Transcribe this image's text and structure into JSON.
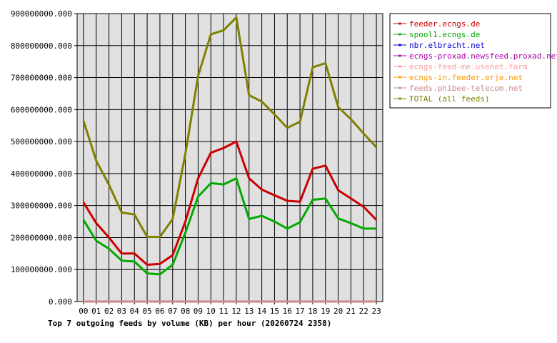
{
  "chart_data": {
    "type": "line",
    "title": "Top 7 outgoing feeds by volume (KB) per hour (20260724 2358)",
    "xlabel": "",
    "ylabel": "",
    "categories": [
      "00",
      "01",
      "02",
      "03",
      "04",
      "05",
      "06",
      "07",
      "08",
      "09",
      "10",
      "11",
      "12",
      "13",
      "14",
      "15",
      "16",
      "17",
      "18",
      "19",
      "20",
      "21",
      "22",
      "23"
    ],
    "ylim": [
      0,
      900000000
    ],
    "yticks": [
      "0.000",
      "100000000.000",
      "200000000.000",
      "300000000.000",
      "400000000.000",
      "500000000.000",
      "600000000.000",
      "700000000.000",
      "800000000.000",
      "900000000.000"
    ],
    "grid": true,
    "legend_position": "right",
    "series": [
      {
        "name": "feeder.ecngs.de",
        "color": "#cc0000",
        "values": [
          310000000,
          245000000,
          200000000,
          150000000,
          150000000,
          115000000,
          118000000,
          145000000,
          250000000,
          385000000,
          465000000,
          480000000,
          500000000,
          385000000,
          350000000,
          332000000,
          315000000,
          312000000,
          415000000,
          425000000,
          348000000,
          322000000,
          296000000,
          255000000
        ]
      },
      {
        "name": "spool1.ecngs.de",
        "color": "#00aa00",
        "values": [
          255000000,
          190000000,
          165000000,
          128000000,
          125000000,
          88000000,
          85000000,
          115000000,
          215000000,
          328000000,
          370000000,
          366000000,
          385000000,
          258000000,
          268000000,
          250000000,
          228000000,
          248000000,
          318000000,
          322000000,
          260000000,
          245000000,
          228000000,
          228000000
        ]
      },
      {
        "name": "nbr.elbracht.net",
        "color": "#0000cc",
        "values": [
          0,
          0,
          0,
          0,
          0,
          0,
          0,
          0,
          0,
          0,
          0,
          0,
          0,
          0,
          0,
          0,
          0,
          0,
          0,
          0,
          0,
          0,
          0,
          0
        ]
      },
      {
        "name": "ecngs-proxad.newsfeed.proxad.net",
        "color": "#aa00aa",
        "values": [
          0,
          0,
          0,
          0,
          0,
          0,
          0,
          0,
          0,
          0,
          0,
          0,
          0,
          0,
          0,
          0,
          0,
          0,
          0,
          0,
          0,
          0,
          0,
          0
        ]
      },
      {
        "name": "ecngs-feed-me.usenet.farm",
        "color": "#ff9999",
        "values": [
          0,
          0,
          0,
          0,
          0,
          0,
          0,
          0,
          0,
          0,
          0,
          0,
          0,
          0,
          0,
          0,
          0,
          0,
          0,
          0,
          0,
          0,
          0,
          0
        ]
      },
      {
        "name": "ecngs-in.feeder.erje.net",
        "color": "#ff9900",
        "values": [
          0,
          0,
          0,
          0,
          0,
          0,
          0,
          0,
          0,
          0,
          0,
          0,
          0,
          0,
          0,
          0,
          0,
          0,
          0,
          0,
          0,
          0,
          0,
          0
        ]
      },
      {
        "name": "feeds.phibee-telecom.net",
        "color": "#cc8888",
        "values": [
          0,
          0,
          0,
          0,
          0,
          0,
          0,
          0,
          0,
          0,
          0,
          0,
          0,
          0,
          0,
          0,
          0,
          0,
          0,
          0,
          0,
          0,
          0,
          0
        ]
      },
      {
        "name": "TOTAL (all feeds)",
        "color": "#808000",
        "values": [
          565000000,
          440000000,
          365000000,
          278000000,
          272000000,
          202000000,
          202000000,
          258000000,
          462000000,
          705000000,
          835000000,
          848000000,
          888000000,
          645000000,
          625000000,
          585000000,
          543000000,
          562000000,
          732000000,
          745000000,
          608000000,
          570000000,
          525000000,
          482000000
        ]
      }
    ]
  }
}
